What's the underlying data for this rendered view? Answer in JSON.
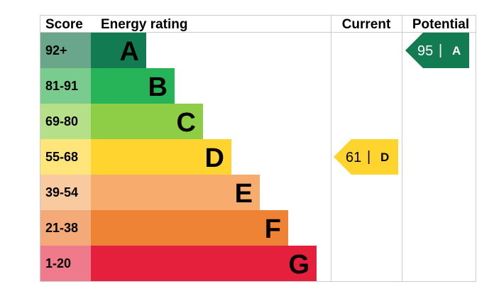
{
  "chart_data": {
    "type": "table",
    "headers": {
      "score": "Score",
      "rating": "Energy rating",
      "current": "Current",
      "potential": "Potential"
    },
    "bands": [
      {
        "letter": "A",
        "range": "92+",
        "color": "#137b52",
        "score_color": "#6aa68a"
      },
      {
        "letter": "B",
        "range": "81-91",
        "color": "#27b458",
        "score_color": "#7acc8e"
      },
      {
        "letter": "C",
        "range": "69-80",
        "color": "#8dce46",
        "score_color": "#b6df8a"
      },
      {
        "letter": "D",
        "range": "55-68",
        "color": "#ffd42f",
        "score_color": "#ffe57a"
      },
      {
        "letter": "E",
        "range": "39-54",
        "color": "#f7ab6d",
        "score_color": "#f9c9a0"
      },
      {
        "letter": "F",
        "range": "21-38",
        "color": "#ee8235",
        "score_color": "#f3aa78"
      },
      {
        "letter": "G",
        "range": "1-20",
        "color": "#e4203c",
        "score_color": "#ef7a8b"
      }
    ],
    "current": {
      "value": "61",
      "separator": "|",
      "letter": "D",
      "color": "#ffd42f",
      "text_color": "#000000"
    },
    "potential": {
      "value": "95",
      "separator": "|",
      "letter": "A",
      "color": "#137b52",
      "text_color": "#ffffff"
    }
  }
}
